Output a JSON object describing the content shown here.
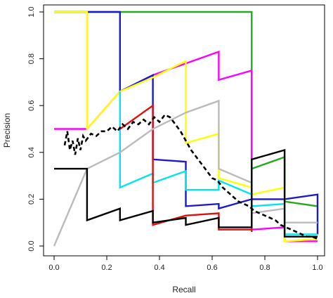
{
  "chart_data": {
    "type": "line",
    "title": "",
    "xlabel": "Recall",
    "ylabel": "Precision",
    "xlim": [
      0,
      1
    ],
    "ylim": [
      0,
      1
    ],
    "xticks": [
      "0.0",
      "0.2",
      "0.4",
      "0.6",
      "0.8",
      "1.0"
    ],
    "yticks": [
      "0.0",
      "0.2",
      "0.4",
      "0.6",
      "0.8",
      "1.0"
    ],
    "xtick_values": [
      0,
      0.2,
      0.4,
      0.6,
      0.8,
      1.0
    ],
    "ytick_values": [
      0,
      0.2,
      0.4,
      0.6,
      0.8,
      1.0
    ],
    "grid": false,
    "legend": "none",
    "series": [
      {
        "color": "#22aa22",
        "dash": false,
        "points": [
          [
            0,
            1
          ],
          [
            0.125,
            1
          ],
          [
            0.25,
            1
          ],
          [
            0.375,
            1
          ],
          [
            0.5,
            1
          ],
          [
            0.625,
            1
          ],
          [
            0.75,
            1
          ],
          [
            0.75,
            0.33
          ],
          [
            0.875,
            0.38
          ],
          [
            0.875,
            0.19
          ],
          [
            1.0,
            0.17
          ]
        ]
      },
      {
        "color": "#ff00ff",
        "dash": false,
        "points": [
          [
            0,
            0.5
          ],
          [
            0.125,
            0.5
          ],
          [
            0.25,
            0.66
          ],
          [
            0.375,
            0.73
          ],
          [
            0.5,
            0.78
          ],
          [
            0.625,
            0.83
          ],
          [
            0.625,
            0.71
          ],
          [
            0.75,
            0.75
          ],
          [
            0.75,
            0.07
          ],
          [
            0.875,
            0.08
          ],
          [
            0.875,
            0.02
          ],
          [
            1.0,
            0.02
          ]
        ]
      },
      {
        "color": "#1a1acc",
        "dash": false,
        "points": [
          [
            0,
            1
          ],
          [
            0.25,
            1
          ],
          [
            0.25,
            0.66
          ],
          [
            0.375,
            0.73
          ],
          [
            0.375,
            0.37
          ],
          [
            0.5,
            0.36
          ],
          [
            0.5,
            0.17
          ],
          [
            0.625,
            0.18
          ],
          [
            0.625,
            0.16
          ],
          [
            0.75,
            0.2
          ],
          [
            0.75,
            0.2
          ],
          [
            0.875,
            0.2
          ],
          [
            0.875,
            0.2
          ],
          [
            1.0,
            0.22
          ],
          [
            1.0,
            0.05
          ]
        ]
      },
      {
        "color": "#ffff00",
        "dash": false,
        "points": [
          [
            0,
            1
          ],
          [
            0.125,
            1
          ],
          [
            0.125,
            0.5
          ],
          [
            0.25,
            0.66
          ],
          [
            0.375,
            0.72
          ],
          [
            0.5,
            0.79
          ],
          [
            0.5,
            0.44
          ],
          [
            0.625,
            0.48
          ],
          [
            0.625,
            0.29
          ],
          [
            0.75,
            0.25
          ],
          [
            0.75,
            0.22
          ],
          [
            0.875,
            0.25
          ],
          [
            0.875,
            0.02
          ],
          [
            1.0,
            0.03
          ]
        ]
      },
      {
        "color": "#00e5ee",
        "dash": false,
        "points": [
          [
            0.25,
            0.66
          ],
          [
            0.25,
            0.25
          ],
          [
            0.375,
            0.31
          ],
          [
            0.375,
            0.27
          ],
          [
            0.5,
            0.32
          ],
          [
            0.5,
            0.24
          ],
          [
            0.625,
            0.24
          ],
          [
            0.625,
            0.28
          ],
          [
            0.75,
            0.22
          ],
          [
            0.75,
            0.17
          ],
          [
            0.875,
            0.18
          ],
          [
            0.875,
            0.05
          ],
          [
            1.0,
            0.05
          ]
        ]
      },
      {
        "color": "#dd1111",
        "dash": false,
        "points": [
          [
            0.25,
            0.5
          ],
          [
            0.375,
            0.6
          ],
          [
            0.375,
            0.09
          ],
          [
            0.5,
            0.13
          ],
          [
            0.5,
            0.13
          ],
          [
            0.625,
            0.14
          ],
          [
            0.625,
            0.07
          ],
          [
            0.75,
            0.07
          ],
          [
            0.75,
            0.06
          ]
        ]
      },
      {
        "color": "#bbbbbb",
        "dash": false,
        "points": [
          [
            0,
            0
          ],
          [
            0.125,
            0.33
          ],
          [
            0.25,
            0.4
          ],
          [
            0.375,
            0.5
          ],
          [
            0.5,
            0.57
          ],
          [
            0.625,
            0.62
          ],
          [
            0.625,
            0.33
          ],
          [
            0.75,
            0.27
          ],
          [
            0.75,
            0.14
          ],
          [
            0.875,
            0.16
          ],
          [
            0.875,
            0.1
          ],
          [
            1.0,
            0.1
          ]
        ]
      },
      {
        "color": "#000000",
        "dash": false,
        "points": [
          [
            0,
            0.33
          ],
          [
            0.125,
            0.33
          ],
          [
            0.125,
            0.11
          ],
          [
            0.25,
            0.16
          ],
          [
            0.25,
            0.11
          ],
          [
            0.375,
            0.15
          ],
          [
            0.375,
            0.1
          ],
          [
            0.5,
            0.12
          ],
          [
            0.5,
            0.09
          ],
          [
            0.625,
            0.12
          ],
          [
            0.625,
            0.08
          ],
          [
            0.75,
            0.08
          ],
          [
            0.75,
            0.37
          ],
          [
            0.875,
            0.41
          ],
          [
            0.875,
            0.04
          ],
          [
            1.0,
            0.04
          ]
        ]
      },
      {
        "color": "#000000",
        "dash": true,
        "points": [
          [
            0.04,
            0.43
          ],
          [
            0.05,
            0.49
          ],
          [
            0.06,
            0.41
          ],
          [
            0.07,
            0.45
          ],
          [
            0.08,
            0.39
          ],
          [
            0.09,
            0.46
          ],
          [
            0.1,
            0.41
          ],
          [
            0.11,
            0.47
          ],
          [
            0.12,
            0.45
          ],
          [
            0.14,
            0.48
          ],
          [
            0.16,
            0.47
          ],
          [
            0.18,
            0.49
          ],
          [
            0.2,
            0.49
          ],
          [
            0.22,
            0.51
          ],
          [
            0.24,
            0.49
          ],
          [
            0.26,
            0.52
          ],
          [
            0.28,
            0.5
          ],
          [
            0.3,
            0.53
          ],
          [
            0.32,
            0.52
          ],
          [
            0.34,
            0.54
          ],
          [
            0.36,
            0.52
          ],
          [
            0.38,
            0.55
          ],
          [
            0.4,
            0.53
          ],
          [
            0.42,
            0.56
          ],
          [
            0.44,
            0.55
          ],
          [
            0.46,
            0.52
          ],
          [
            0.48,
            0.49
          ],
          [
            0.5,
            0.45
          ],
          [
            0.52,
            0.41
          ],
          [
            0.54,
            0.38
          ],
          [
            0.56,
            0.35
          ],
          [
            0.58,
            0.32
          ],
          [
            0.6,
            0.29
          ],
          [
            0.62,
            0.28
          ],
          [
            0.64,
            0.25
          ],
          [
            0.66,
            0.23
          ],
          [
            0.68,
            0.21
          ],
          [
            0.7,
            0.19
          ],
          [
            0.72,
            0.18
          ],
          [
            0.74,
            0.17
          ],
          [
            0.76,
            0.15
          ],
          [
            0.78,
            0.14
          ],
          [
            0.8,
            0.13
          ],
          [
            0.82,
            0.12
          ],
          [
            0.84,
            0.11
          ],
          [
            0.86,
            0.09
          ],
          [
            0.88,
            0.08
          ],
          [
            0.9,
            0.07
          ],
          [
            0.92,
            0.06
          ],
          [
            0.94,
            0.05
          ],
          [
            0.96,
            0.04
          ],
          [
            0.98,
            0.04
          ],
          [
            1.0,
            0.03
          ]
        ]
      }
    ]
  }
}
